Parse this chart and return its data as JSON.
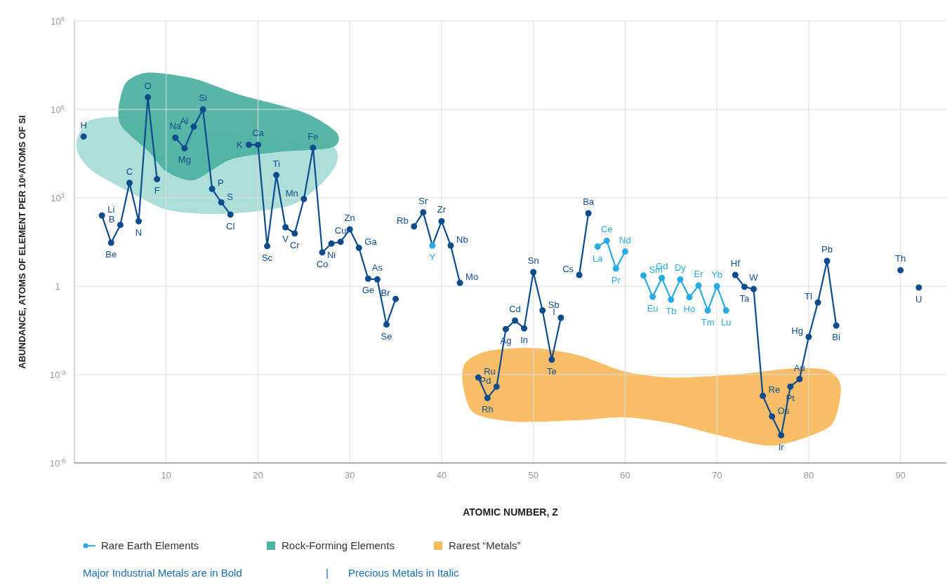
{
  "chart_data": {
    "type": "line",
    "xlabel": "ATOMIC NUMBER, Z",
    "ylabel": "ABUNDANCE, ATOMS OF ELEMENT PER 10⁶ATOMS OF SI",
    "log": "y",
    "xlim": [
      0,
      95
    ],
    "xticks": [
      {
        "value": 0,
        "label": null
      },
      10,
      20,
      30,
      40,
      50,
      60,
      70,
      80,
      90
    ],
    "ylim": [
      1e-06,
      1000000000.0
    ],
    "yticks": [
      {
        "value": 1e-06,
        "label": "10$^{-6}$"
      },
      {
        "value": 0.001,
        "label": "10$^{-3}$"
      },
      1,
      {
        "value": 1000,
        "label": "10$^{3}$"
      },
      {
        "value": 1000000,
        "label": "10$^{6}$"
      },
      {
        "value": 1000000000,
        "label": "10$^{9}$"
      }
    ],
    "grid": true,
    "marker": "circle",
    "line_style": "solid",
    "legend": "bottom left",
    "series": [
      {
        "color": "#0f4c8c",
        "x": [
          1,
          2,
          3,
          4,
          5,
          6,
          7,
          8,
          9,
          10,
          11,
          12,
          13,
          14,
          15,
          16,
          17,
          18,
          19,
          20,
          21,
          22,
          23,
          24,
          25,
          26,
          27,
          28,
          29,
          30,
          31,
          32,
          33,
          34,
          35,
          36,
          37,
          38,
          39,
          40,
          41,
          42,
          43,
          44,
          45,
          46,
          47,
          48,
          49,
          50,
          51,
          52,
          53,
          54,
          55,
          56,
          57,
          72,
          73,
          74,
          75,
          76,
          77,
          78,
          79,
          80,
          81,
          82,
          83,
          84,
          90,
          91,
          92
        ],
        "values": [
          120000,
          null,
          250,
          30,
          120,
          3200,
          160,
          2600000,
          4300,
          null,
          110000,
          48000,
          260000,
          1000000,
          2000,
          700,
          270,
          null,
          63000,
          63000,
          23,
          5900,
          100,
          62,
          910,
          50000,
          14,
          28,
          32,
          85,
          20,
          1.8,
          1.7,
          0.05,
          0.37,
          null,
          107,
          320,
          24,
          160,
          24,
          1.3,
          null,
          0.0008,
          0.00016,
          0.00039,
          0.035,
          0.068,
          0.037,
          3,
          0.15,
          0.0032,
          0.085,
          null,
          2.4,
          300,
          null,
          2.4,
          0.95,
          0.8,
          0.00019,
          3.8e-05,
          8.7e-06,
          0.00039,
          0.0007,
          0.019,
          0.28,
          7.2,
          0.046,
          null,
          3.5,
          null,
          0.9
        ],
        "colors": [
          "#0f4c8c",
          "#0f4c8c",
          "#0f4c8c",
          "#0f4c8c",
          "#0f4c8c",
          "#0f4c8c",
          "#0f4c8c",
          "#0f4c8c",
          "#0f4c8c",
          "#0f4c8c",
          "#0f4c8c",
          "#0f4c8c",
          "#0f4c8c",
          "#0f4c8c",
          "#0f4c8c",
          "#0f4c8c",
          "#0f4c8c",
          "#0f4c8c",
          "#0f4c8c",
          "#0f4c8c",
          "#0f4c8c",
          "#0f4c8c",
          "#0f4c8c",
          "#0f4c8c",
          "#0f4c8c",
          "#0f4c8c",
          "#0f4c8c",
          "#0f4c8c",
          "#0f4c8c",
          "#0f4c8c",
          "#0f4c8c",
          "#0f4c8c",
          "#0f4c8c",
          "#0f4c8c",
          "#0f4c8c",
          "#0f4c8c",
          "#0f4c8c",
          "#0f4c8c",
          "#29abe2",
          "#0f4c8c",
          "#0f4c8c",
          "#0f4c8c",
          "#0f4c8c",
          "#0f4c8c",
          "#0f4c8c",
          "#0f4c8c",
          "#0f4c8c",
          "#0f4c8c",
          "#0f4c8c",
          "#0f4c8c",
          "#0f4c8c",
          "#0f4c8c",
          "#0f4c8c",
          "#0f4c8c",
          "#0f4c8c",
          "#0f4c8c",
          "#0f4c8c",
          "#0f4c8c",
          "#0f4c8c",
          "#0f4c8c",
          "#0f4c8c",
          "#0f4c8c",
          "#0f4c8c",
          "#0f4c8c",
          "#0f4c8c",
          "#0f4c8c",
          "#0f4c8c",
          "#0f4c8c",
          "#0f4c8c",
          "#0f4c8c",
          "#0f4c8c",
          "#0f4c8c",
          "#0f4c8c"
        ]
      },
      {
        "name": "Rare Earth Elements",
        "color": "#29abe2",
        "x": [
          57,
          58,
          59,
          60,
          61,
          62,
          63,
          64,
          65,
          66,
          67,
          68,
          69,
          70,
          71
        ],
        "values": [
          22,
          35,
          4,
          15,
          null,
          2.3,
          0.44,
          1.9,
          0.35,
          1.7,
          0.42,
          1.05,
          0.15,
          1,
          0.15
        ]
      }
    ],
    "annotations": [
      "Rock-Forming Elements",
      "Rarest “Metals”",
      "Major Industrial Metals are in Bold",
      "|",
      "Precious Metals in Italic",
      {
        "text": "H",
        "x": 1,
        "y": 120000
      },
      {
        "text": "Li",
        "x": 3,
        "y": 250
      },
      {
        "text": "Be",
        "x": 4,
        "y": 30
      },
      {
        "text": "B",
        "x": 5,
        "y": 120
      },
      {
        "text": "C",
        "x": 6,
        "y": 3200
      },
      {
        "text": "N",
        "x": 7,
        "y": 160
      },
      {
        "text": "O",
        "x": 8,
        "y": 2600000
      },
      {
        "text": "F",
        "x": 9,
        "y": 4300
      },
      {
        "text": "Na",
        "x": 11,
        "y": 110000
      },
      {
        "text": "Mg",
        "x": 12,
        "y": 48000
      },
      {
        "text": "Al",
        "x": 13,
        "y": 260000
      },
      {
        "text": "Si",
        "x": 14,
        "y": 1000000
      },
      {
        "text": "P",
        "x": 15,
        "y": 2000
      },
      {
        "text": "S",
        "x": 16,
        "y": 700
      },
      {
        "text": "Cl",
        "x": 17,
        "y": 270
      },
      {
        "text": "K",
        "x": 19,
        "y": 63000
      },
      {
        "text": "Ca",
        "x": 20,
        "y": 63000
      },
      {
        "text": "Sc",
        "x": 21,
        "y": 23
      },
      {
        "text": "Ti",
        "x": 22,
        "y": 5900
      },
      {
        "text": "V",
        "x": 23,
        "y": 100
      },
      {
        "text": "Cr",
        "x": 24,
        "y": 62
      },
      {
        "text": "Mn",
        "x": 25,
        "y": 910
      },
      {
        "text": "Fe",
        "x": 26,
        "y": 50000
      },
      {
        "text": "Co",
        "x": 27,
        "y": 14
      },
      {
        "text": "Ni",
        "x": 28,
        "y": 28
      },
      {
        "text": "Cu",
        "x": 29,
        "y": 32
      },
      {
        "text": "Zn",
        "x": 30,
        "y": 85
      },
      {
        "text": "Ga",
        "x": 31,
        "y": 20
      },
      {
        "text": "Ge",
        "x": 32,
        "y": 1.8
      },
      {
        "text": "As",
        "x": 33,
        "y": 1.7
      },
      {
        "text": "Se",
        "x": 34,
        "y": 0.05
      },
      {
        "text": "Br",
        "x": 35,
        "y": 0.37
      },
      {
        "text": "Rb",
        "x": 37,
        "y": 107
      },
      {
        "text": "Sr",
        "x": 38,
        "y": 320
      },
      {
        "text": "Y",
        "x": 39,
        "y": 24
      },
      {
        "text": "Zr",
        "x": 40,
        "y": 160
      },
      {
        "text": "Nb",
        "x": 41,
        "y": 24
      },
      {
        "text": "Mo",
        "x": 42,
        "y": 1.3
      },
      {
        "text": "Ru",
        "x": 44,
        "y": 0.0008
      },
      {
        "text": "Rh",
        "x": 45,
        "y": 0.00016
      },
      {
        "text": "Pd",
        "x": 46,
        "y": 0.00039
      },
      {
        "text": "Ag",
        "x": 47,
        "y": 0.035
      },
      {
        "text": "Cd",
        "x": 48,
        "y": 0.068
      },
      {
        "text": "In",
        "x": 49,
        "y": 0.037
      },
      {
        "text": "Sn",
        "x": 50,
        "y": 3
      },
      {
        "text": "Sb",
        "x": 51,
        "y": 0.15
      },
      {
        "text": "Te",
        "x": 52,
        "y": 0.0032
      },
      {
        "text": "I",
        "x": 53,
        "y": 0.085
      },
      {
        "text": "Cs",
        "x": 55,
        "y": 2.4
      },
      {
        "text": "Ba",
        "x": 56,
        "y": 300
      },
      {
        "text": "La",
        "x": 57,
        "y": 22
      },
      {
        "text": "Ce",
        "x": 58,
        "y": 35
      },
      {
        "text": "Pr",
        "x": 59,
        "y": 4
      },
      {
        "text": "Nd",
        "x": 60,
        "y": 15
      },
      {
        "text": "Sm",
        "x": 62,
        "y": 2.3
      },
      {
        "text": "Eu",
        "x": 63,
        "y": 0.44
      },
      {
        "text": "Gd",
        "x": 64,
        "y": 1.9
      },
      {
        "text": "Tb",
        "x": 65,
        "y": 0.35
      },
      {
        "text": "Dy",
        "x": 66,
        "y": 1.7
      },
      {
        "text": "Ho",
        "x": 67,
        "y": 0.42
      },
      {
        "text": "Er",
        "x": 68,
        "y": 1.05
      },
      {
        "text": "Tm",
        "x": 69,
        "y": 0.15
      },
      {
        "text": "Yb",
        "x": 70,
        "y": 1
      },
      {
        "text": "Lu",
        "x": 71,
        "y": 0.15
      },
      {
        "text": "Hf",
        "x": 72,
        "y": 2.4
      },
      {
        "text": "Ta",
        "x": 73,
        "y": 0.95
      },
      {
        "text": "W",
        "x": 74,
        "y": 0.8
      },
      {
        "text": "Re",
        "x": 75,
        "y": 0.00019
      },
      {
        "text": "Os",
        "x": 76,
        "y": 3.8e-05
      },
      {
        "text": "Ir",
        "x": 77,
        "y": 8.7e-06
      },
      {
        "text": "Pt",
        "x": 78,
        "y": 0.00039
      },
      {
        "text": "Au",
        "x": 79,
        "y": 0.0007
      },
      {
        "text": "Hg",
        "x": 80,
        "y": 0.019
      },
      {
        "text": "Tl",
        "x": 81,
        "y": 0.28
      },
      {
        "text": "Pb",
        "x": 82,
        "y": 7.2
      },
      {
        "text": "Bi",
        "x": 83,
        "y": 0.046
      },
      {
        "text": "Th",
        "x": 90,
        "y": 3.5
      },
      {
        "text": "U",
        "x": 92,
        "y": 0.9
      }
    ]
  }
}
